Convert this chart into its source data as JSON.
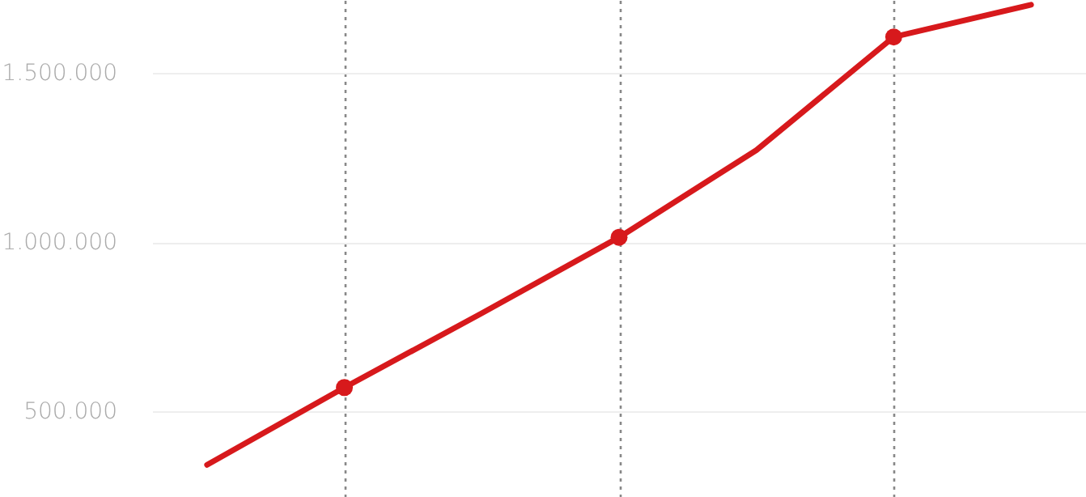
{
  "chart_data": {
    "type": "line",
    "categories": [
      null,
      null,
      null,
      null,
      null,
      null,
      null
    ],
    "series": [
      {
        "color": "#d7191c",
        "values": [
          343000,
          571000,
          790000,
          1014000,
          1271000,
          1605000,
          1700000
        ]
      },
      {
        "type": "scatter",
        "color": "#d7191c",
        "values": [
          null,
          571000,
          null,
          1014000,
          null,
          1605000,
          null
        ],
        "marker": "circle"
      }
    ],
    "ylim": [
      248000,
      1714000
    ],
    "yticks": [
      {
        "value": 500000,
        "label": "500.000"
      },
      {
        "value": 1000000,
        "label": "1.000.000"
      },
      {
        "value": 1500000,
        "label": "1.500.000"
      }
    ],
    "grid": true,
    "tick_labels": "y",
    "line_style": "solid"
  }
}
